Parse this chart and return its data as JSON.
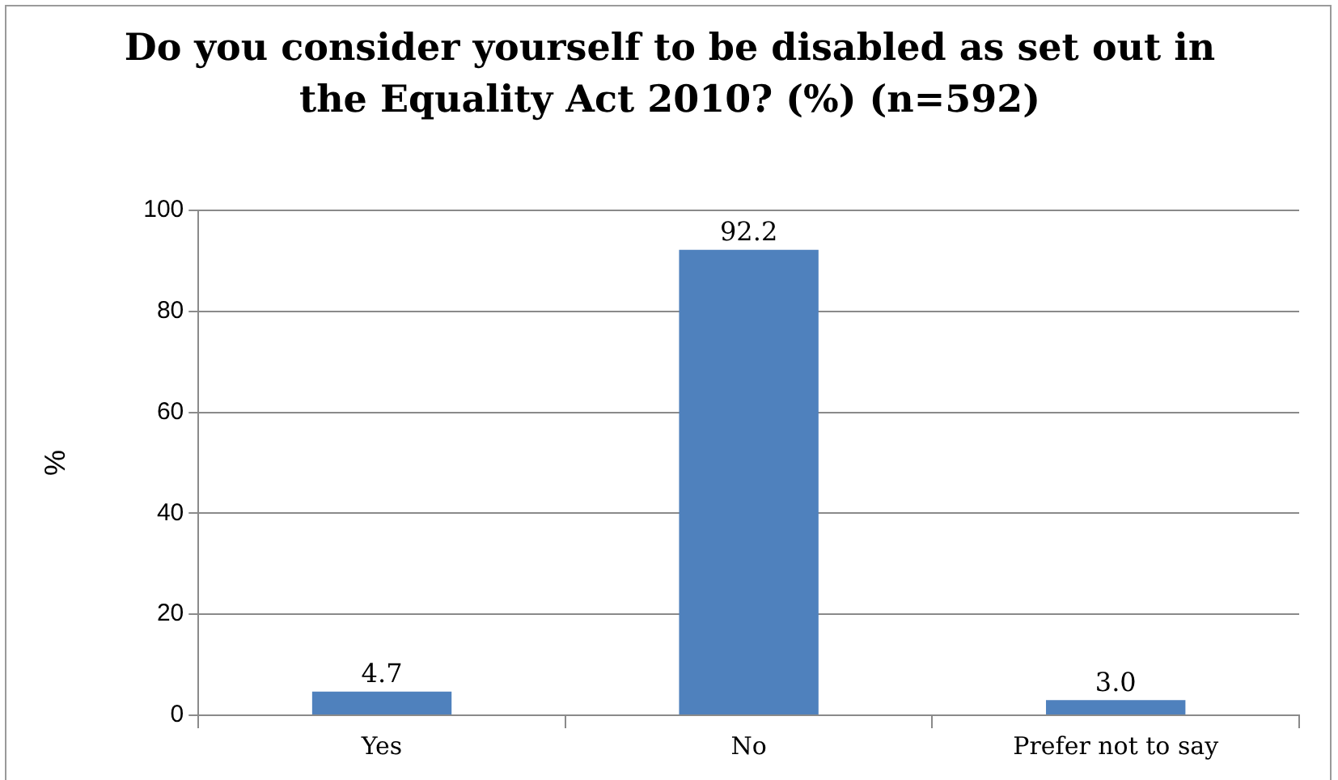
{
  "chart_data": {
    "type": "bar",
    "title": "Do you consider yourself to be disabled as set out in the Equality Act 2010? (%) (n=592)",
    "ylabel": "%",
    "categories": [
      "Yes",
      "No",
      "Prefer not to say"
    ],
    "values": [
      4.7,
      92.2,
      3.0
    ],
    "value_labels": [
      "4.7",
      "92.2",
      "3.0"
    ],
    "color": "#4f81bd",
    "ylim": [
      0,
      100
    ],
    "yticks": [
      0,
      20,
      40,
      60,
      80,
      100
    ],
    "grid": "y",
    "legend": false
  }
}
